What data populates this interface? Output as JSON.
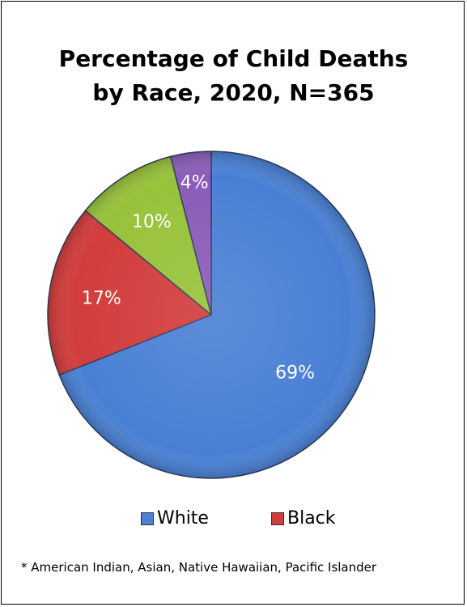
{
  "chart_data": {
    "type": "pie",
    "title_line1": "Percentage of Child Deaths",
    "title_line2": "by Race, 2020, N=365",
    "slices": [
      {
        "name": "White",
        "value": 69,
        "label": "69%",
        "color": "#4a80d4"
      },
      {
        "name": "Black",
        "value": 17,
        "label": "17%",
        "color": "#d23c3c"
      },
      {
        "name": "",
        "value": 10,
        "label": "10%",
        "color": "#98c23a"
      },
      {
        "name": "",
        "value": 4,
        "label": "4%",
        "color": "#8a5db8"
      }
    ],
    "legend": [
      "White",
      "Black"
    ],
    "legend_position": "bottom"
  },
  "footnote": "* American Indian, Asian, Native Hawaiian, Pacific Islander"
}
